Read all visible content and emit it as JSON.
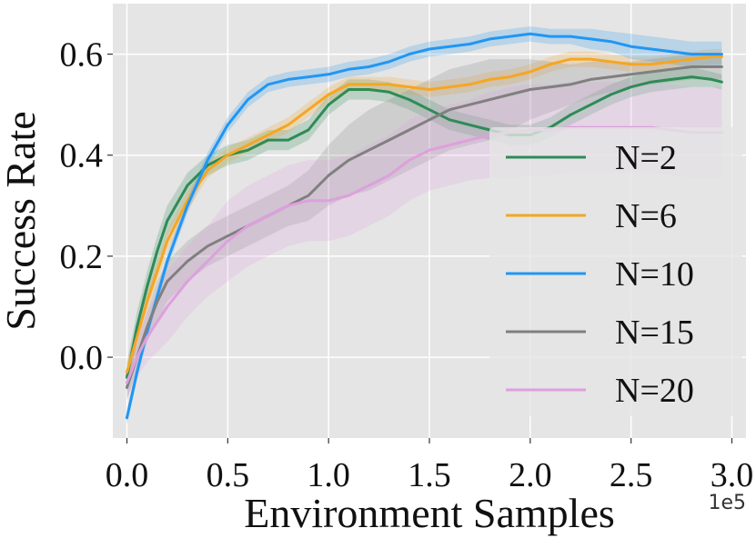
{
  "chart_data": {
    "type": "line",
    "title": "",
    "xlabel": "Environment Samples",
    "ylabel": "Success Rate",
    "x_offset_label": "1e5",
    "xlim": [
      -0.07,
      3.07
    ],
    "ylim": [
      -0.16,
      0.7
    ],
    "xticks": [
      0.0,
      0.5,
      1.0,
      1.5,
      2.0,
      2.5,
      3.0
    ],
    "xtick_labels": [
      "0.0",
      "0.5",
      "1.0",
      "1.5",
      "2.0",
      "2.5",
      "3.0"
    ],
    "yticks": [
      0.0,
      0.2,
      0.4,
      0.6
    ],
    "ytick_labels": [
      "0.0",
      "0.2",
      "0.4",
      "0.6"
    ],
    "grid": true,
    "legend_position": "right",
    "x": [
      0.0,
      0.05,
      0.1,
      0.15,
      0.2,
      0.3,
      0.4,
      0.5,
      0.6,
      0.7,
      0.8,
      0.9,
      1.0,
      1.1,
      1.2,
      1.3,
      1.4,
      1.5,
      1.6,
      1.7,
      1.8,
      1.9,
      2.0,
      2.1,
      2.2,
      2.3,
      2.4,
      2.5,
      2.6,
      2.7,
      2.8,
      2.9,
      2.95
    ],
    "series": [
      {
        "name": "N=2",
        "color": "#2e8b57",
        "values": [
          -0.04,
          0.06,
          0.14,
          0.21,
          0.27,
          0.34,
          0.38,
          0.4,
          0.41,
          0.43,
          0.43,
          0.45,
          0.5,
          0.53,
          0.53,
          0.525,
          0.51,
          0.49,
          0.47,
          0.46,
          0.45,
          0.44,
          0.44,
          0.455,
          0.48,
          0.5,
          0.52,
          0.535,
          0.545,
          0.55,
          0.555,
          0.55,
          0.545
        ],
        "band": [
          0.03,
          0.03,
          0.03,
          0.03,
          0.03,
          0.025,
          0.02,
          0.02,
          0.02,
          0.02,
          0.02,
          0.02,
          0.02,
          0.02,
          0.02,
          0.02,
          0.02,
          0.02,
          0.02,
          0.02,
          0.02,
          0.02,
          0.02,
          0.02,
          0.02,
          0.02,
          0.02,
          0.02,
          0.02,
          0.02,
          0.02,
          0.015,
          0.015
        ]
      },
      {
        "name": "N=6",
        "color": "#f5a623",
        "values": [
          -0.03,
          0.04,
          0.11,
          0.17,
          0.23,
          0.31,
          0.37,
          0.4,
          0.42,
          0.44,
          0.46,
          0.49,
          0.52,
          0.54,
          0.54,
          0.54,
          0.535,
          0.53,
          0.535,
          0.54,
          0.55,
          0.555,
          0.565,
          0.58,
          0.59,
          0.59,
          0.585,
          0.58,
          0.58,
          0.585,
          0.59,
          0.595,
          0.595
        ],
        "band": [
          0.02,
          0.02,
          0.02,
          0.02,
          0.02,
          0.02,
          0.015,
          0.015,
          0.015,
          0.015,
          0.015,
          0.015,
          0.015,
          0.015,
          0.015,
          0.015,
          0.015,
          0.015,
          0.015,
          0.015,
          0.015,
          0.015,
          0.015,
          0.015,
          0.015,
          0.015,
          0.015,
          0.015,
          0.015,
          0.015,
          0.015,
          0.015,
          0.015
        ]
      },
      {
        "name": "N=10",
        "color": "#2196f3",
        "values": [
          -0.12,
          -0.03,
          0.05,
          0.12,
          0.19,
          0.3,
          0.39,
          0.46,
          0.51,
          0.54,
          0.55,
          0.555,
          0.56,
          0.57,
          0.575,
          0.585,
          0.6,
          0.61,
          0.615,
          0.62,
          0.63,
          0.635,
          0.64,
          0.635,
          0.635,
          0.63,
          0.625,
          0.615,
          0.61,
          0.605,
          0.6,
          0.6,
          0.6
        ],
        "band": [
          0.015,
          0.015,
          0.015,
          0.015,
          0.015,
          0.015,
          0.015,
          0.015,
          0.015,
          0.015,
          0.015,
          0.015,
          0.015,
          0.015,
          0.015,
          0.015,
          0.015,
          0.015,
          0.015,
          0.015,
          0.015,
          0.015,
          0.015,
          0.015,
          0.015,
          0.02,
          0.02,
          0.025,
          0.025,
          0.025,
          0.025,
          0.025,
          0.025
        ]
      },
      {
        "name": "N=15",
        "color": "#808080",
        "values": [
          -0.06,
          0.0,
          0.06,
          0.11,
          0.15,
          0.19,
          0.22,
          0.24,
          0.26,
          0.28,
          0.3,
          0.32,
          0.36,
          0.39,
          0.41,
          0.43,
          0.45,
          0.47,
          0.49,
          0.5,
          0.51,
          0.52,
          0.53,
          0.535,
          0.54,
          0.55,
          0.555,
          0.56,
          0.565,
          0.57,
          0.575,
          0.575,
          0.575
        ],
        "band": [
          0.025,
          0.025,
          0.03,
          0.04,
          0.04,
          0.04,
          0.04,
          0.04,
          0.04,
          0.04,
          0.04,
          0.05,
          0.06,
          0.07,
          0.08,
          0.08,
          0.08,
          0.08,
          0.08,
          0.08,
          0.08,
          0.07,
          0.06,
          0.05,
          0.04,
          0.035,
          0.03,
          0.025,
          0.025,
          0.025,
          0.025,
          0.025,
          0.025
        ]
      },
      {
        "name": "N=20",
        "color": "#dda0dd",
        "values": [
          -0.05,
          0.0,
          0.04,
          0.07,
          0.1,
          0.15,
          0.19,
          0.23,
          0.26,
          0.28,
          0.3,
          0.31,
          0.31,
          0.32,
          0.34,
          0.36,
          0.39,
          0.41,
          0.42,
          0.43,
          0.44,
          0.445,
          0.45,
          0.45,
          0.455,
          0.455,
          0.455,
          0.455,
          0.455,
          0.45,
          0.445,
          0.445,
          0.445
        ],
        "band": [
          0.03,
          0.04,
          0.05,
          0.06,
          0.07,
          0.07,
          0.07,
          0.08,
          0.08,
          0.08,
          0.08,
          0.08,
          0.08,
          0.08,
          0.08,
          0.08,
          0.08,
          0.08,
          0.08,
          0.08,
          0.085,
          0.09,
          0.09,
          0.09,
          0.09,
          0.09,
          0.09,
          0.09,
          0.09,
          0.09,
          0.09,
          0.09,
          0.09
        ]
      }
    ]
  }
}
